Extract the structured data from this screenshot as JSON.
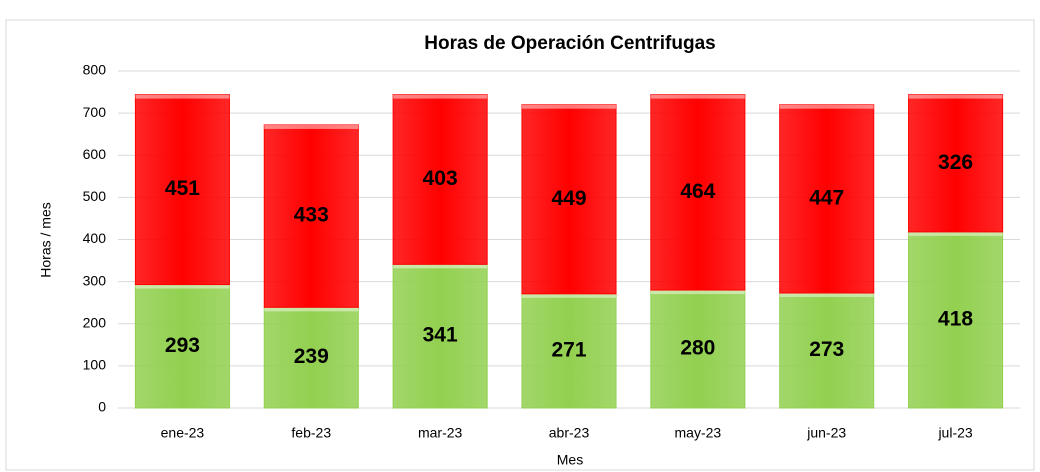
{
  "chart_data": {
    "type": "stacked_bar",
    "title": "Horas de Operación Centrifugas",
    "x_label": "Mes",
    "y_label": "Horas / mes",
    "categories": [
      "ene-23",
      "feb-23",
      "mar-23",
      "abr-23",
      "may-23",
      "jun-23",
      "jul-23"
    ],
    "series": [
      {
        "color": "#92d050",
        "values": [
          293,
          239,
          341,
          271,
          280,
          273,
          418
        ]
      },
      {
        "color": "#ff0000",
        "values": [
          451,
          433,
          403,
          449,
          464,
          447,
          326
        ]
      }
    ],
    "ylim": [
      0,
      800
    ],
    "yticks": [
      0,
      100,
      200,
      300,
      400,
      500,
      600,
      700,
      800
    ],
    "grid": true
  }
}
